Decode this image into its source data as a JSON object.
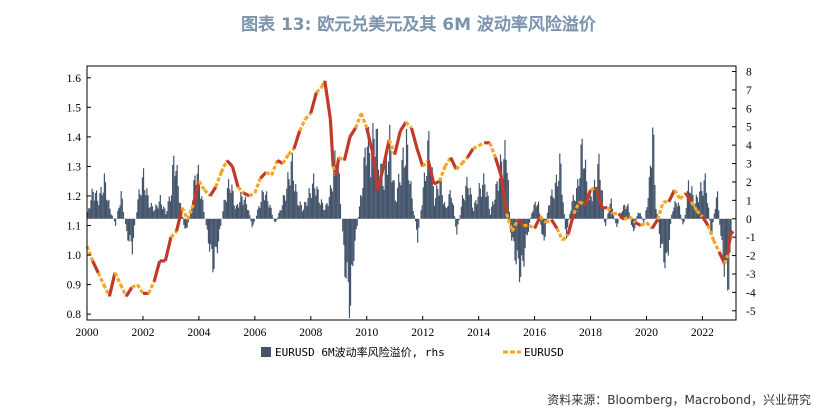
{
  "header": {
    "title": "图表 13: 欧元兑美元及其 6M 波动率风险溢价"
  },
  "footer": {
    "source": "资料来源：Bloomberg，Macrobond，兴业研究"
  },
  "chart_data": {
    "type": "bar+line",
    "x_ticks": [
      "2000",
      "2002",
      "2004",
      "2006",
      "2008",
      "2010",
      "2012",
      "2014",
      "2016",
      "2018",
      "2020",
      "2022"
    ],
    "xlim": [
      2000,
      2023.2
    ],
    "left_axis": {
      "ylim": [
        0.78,
        1.64
      ],
      "ticks": [
        "0.8",
        "0.9",
        "1.0",
        "1.1",
        "1.2",
        "1.3",
        "1.4",
        "1.5",
        "1.6"
      ]
    },
    "right_axis": {
      "ylim": [
        -5.5,
        8.3
      ],
      "ticks": [
        "-5",
        "-4",
        "-3",
        "-2",
        "-1",
        "0",
        "1",
        "2",
        "3",
        "4",
        "5",
        "6",
        "7",
        "8"
      ]
    },
    "legend": [
      {
        "label": "EURUSD 6M波动率风险溢价, rhs",
        "color": "#44546a",
        "kind": "bar"
      },
      {
        "label": "EURUSD",
        "color": "#f5a623",
        "highlight_color": "#c0392b",
        "kind": "line"
      }
    ],
    "series": [
      {
        "name": "EURUSD 6M波动率风险溢价, rhs",
        "axis": "right",
        "points": [
          [
            2000.0,
            0.3
          ],
          [
            2000.2,
            1.5
          ],
          [
            2000.4,
            1.0
          ],
          [
            2000.6,
            2.0
          ],
          [
            2000.8,
            0.5
          ],
          [
            2001.0,
            -0.3
          ],
          [
            2001.2,
            1.3
          ],
          [
            2001.4,
            -0.8
          ],
          [
            2001.6,
            -1.5
          ],
          [
            2001.8,
            1.0
          ],
          [
            2002.0,
            2.2
          ],
          [
            2002.2,
            0.8
          ],
          [
            2002.4,
            0.5
          ],
          [
            2002.6,
            1.0
          ],
          [
            2002.8,
            0.3
          ],
          [
            2003.0,
            1.5
          ],
          [
            2003.1,
            3.5
          ],
          [
            2003.3,
            1.0
          ],
          [
            2003.5,
            -0.8
          ],
          [
            2003.7,
            0.5
          ],
          [
            2003.9,
            2.8
          ],
          [
            2004.1,
            1.0
          ],
          [
            2004.3,
            -1.0
          ],
          [
            2004.5,
            -2.5
          ],
          [
            2004.7,
            -1.0
          ],
          [
            2004.9,
            1.0
          ],
          [
            2005.1,
            2.0
          ],
          [
            2005.3,
            0.5
          ],
          [
            2005.5,
            1.2
          ],
          [
            2005.7,
            0.8
          ],
          [
            2005.9,
            -0.5
          ],
          [
            2006.1,
            0.5
          ],
          [
            2006.3,
            1.5
          ],
          [
            2006.5,
            0.8
          ],
          [
            2006.7,
            -0.3
          ],
          [
            2006.9,
            0.5
          ],
          [
            2007.1,
            1.5
          ],
          [
            2007.3,
            3.0
          ],
          [
            2007.5,
            1.0
          ],
          [
            2007.7,
            0.5
          ],
          [
            2007.9,
            1.2
          ],
          [
            2008.1,
            2.0
          ],
          [
            2008.3,
            1.0
          ],
          [
            2008.5,
            0.5
          ],
          [
            2008.7,
            1.5
          ],
          [
            2008.9,
            3.5
          ],
          [
            2009.0,
            2.0
          ],
          [
            2009.1,
            -0.5
          ],
          [
            2009.2,
            -2.5
          ],
          [
            2009.3,
            -3.5
          ],
          [
            2009.4,
            -4.6
          ],
          [
            2009.5,
            -2.0
          ],
          [
            2009.6,
            -0.8
          ],
          [
            2009.8,
            1.5
          ],
          [
            2010.0,
            4.5
          ],
          [
            2010.1,
            3.0
          ],
          [
            2010.3,
            5.0
          ],
          [
            2010.4,
            3.0
          ],
          [
            2010.6,
            2.0
          ],
          [
            2010.8,
            4.0
          ],
          [
            2011.0,
            1.0
          ],
          [
            2011.2,
            2.5
          ],
          [
            2011.4,
            4.0
          ],
          [
            2011.6,
            1.0
          ],
          [
            2011.8,
            -1.0
          ],
          [
            2012.0,
            1.5
          ],
          [
            2012.2,
            4.0
          ],
          [
            2012.4,
            1.0
          ],
          [
            2012.6,
            2.0
          ],
          [
            2012.8,
            0.5
          ],
          [
            2013.0,
            1.5
          ],
          [
            2013.2,
            -0.8
          ],
          [
            2013.4,
            1.0
          ],
          [
            2013.6,
            2.0
          ],
          [
            2013.8,
            0.5
          ],
          [
            2014.0,
            1.5
          ],
          [
            2014.2,
            2.0
          ],
          [
            2014.4,
            0.3
          ],
          [
            2014.6,
            1.5
          ],
          [
            2014.8,
            3.0
          ],
          [
            2015.0,
            3.5
          ],
          [
            2015.1,
            -0.5
          ],
          [
            2015.3,
            -2.0
          ],
          [
            2015.5,
            -3.0
          ],
          [
            2015.7,
            -1.0
          ],
          [
            2015.9,
            0.5
          ],
          [
            2016.1,
            1.0
          ],
          [
            2016.3,
            -1.5
          ],
          [
            2016.5,
            1.0
          ],
          [
            2016.7,
            1.5
          ],
          [
            2016.9,
            3.0
          ],
          [
            2017.1,
            -1.0
          ],
          [
            2017.3,
            0.8
          ],
          [
            2017.5,
            1.5
          ],
          [
            2017.7,
            4.0
          ],
          [
            2017.9,
            1.0
          ],
          [
            2018.1,
            1.5
          ],
          [
            2018.3,
            3.0
          ],
          [
            2018.5,
            -0.5
          ],
          [
            2018.7,
            1.0
          ],
          [
            2018.9,
            -0.5
          ],
          [
            2019.1,
            0.5
          ],
          [
            2019.3,
            0.8
          ],
          [
            2019.5,
            -0.8
          ],
          [
            2019.7,
            0.5
          ],
          [
            2019.9,
            -0.3
          ],
          [
            2020.1,
            2.0
          ],
          [
            2020.2,
            5.2
          ],
          [
            2020.3,
            1.0
          ],
          [
            2020.5,
            -1.5
          ],
          [
            2020.7,
            -2.5
          ],
          [
            2020.9,
            0.5
          ],
          [
            2021.1,
            1.0
          ],
          [
            2021.3,
            -0.5
          ],
          [
            2021.5,
            2.0
          ],
          [
            2021.7,
            0.8
          ],
          [
            2021.9,
            1.5
          ],
          [
            2022.1,
            2.0
          ],
          [
            2022.3,
            -1.0
          ],
          [
            2022.5,
            1.5
          ],
          [
            2022.7,
            -2.0
          ],
          [
            2022.9,
            -3.5
          ],
          [
            2023.0,
            -1.5
          ]
        ]
      },
      {
        "name": "EURUSD",
        "axis": "left",
        "points": [
          [
            2000.0,
            1.03
          ],
          [
            2000.2,
            0.98
          ],
          [
            2000.4,
            0.94
          ],
          [
            2000.6,
            0.9
          ],
          [
            2000.8,
            0.86
          ],
          [
            2001.0,
            0.94
          ],
          [
            2001.2,
            0.9
          ],
          [
            2001.4,
            0.86
          ],
          [
            2001.6,
            0.89
          ],
          [
            2001.8,
            0.9
          ],
          [
            2002.0,
            0.87
          ],
          [
            2002.2,
            0.87
          ],
          [
            2002.4,
            0.91
          ],
          [
            2002.6,
            0.98
          ],
          [
            2002.8,
            0.98
          ],
          [
            2003.0,
            1.06
          ],
          [
            2003.2,
            1.08
          ],
          [
            2003.4,
            1.16
          ],
          [
            2003.6,
            1.12
          ],
          [
            2003.8,
            1.17
          ],
          [
            2004.0,
            1.25
          ],
          [
            2004.2,
            1.22
          ],
          [
            2004.4,
            1.2
          ],
          [
            2004.6,
            1.23
          ],
          [
            2004.8,
            1.28
          ],
          [
            2005.0,
            1.32
          ],
          [
            2005.2,
            1.3
          ],
          [
            2005.4,
            1.23
          ],
          [
            2005.6,
            1.21
          ],
          [
            2005.8,
            1.2
          ],
          [
            2006.0,
            1.21
          ],
          [
            2006.2,
            1.26
          ],
          [
            2006.4,
            1.28
          ],
          [
            2006.6,
            1.27
          ],
          [
            2006.8,
            1.32
          ],
          [
            2007.0,
            1.31
          ],
          [
            2007.2,
            1.34
          ],
          [
            2007.4,
            1.36
          ],
          [
            2007.6,
            1.42
          ],
          [
            2007.8,
            1.46
          ],
          [
            2008.0,
            1.48
          ],
          [
            2008.2,
            1.55
          ],
          [
            2008.4,
            1.57
          ],
          [
            2008.5,
            1.59
          ],
          [
            2008.7,
            1.46
          ],
          [
            2008.8,
            1.3
          ],
          [
            2008.9,
            1.27
          ],
          [
            2009.0,
            1.33
          ],
          [
            2009.2,
            1.32
          ],
          [
            2009.4,
            1.4
          ],
          [
            2009.6,
            1.43
          ],
          [
            2009.8,
            1.48
          ],
          [
            2010.0,
            1.43
          ],
          [
            2010.2,
            1.35
          ],
          [
            2010.4,
            1.22
          ],
          [
            2010.6,
            1.3
          ],
          [
            2010.8,
            1.39
          ],
          [
            2011.0,
            1.34
          ],
          [
            2011.2,
            1.42
          ],
          [
            2011.4,
            1.45
          ],
          [
            2011.6,
            1.43
          ],
          [
            2011.8,
            1.36
          ],
          [
            2012.0,
            1.3
          ],
          [
            2012.2,
            1.32
          ],
          [
            2012.4,
            1.24
          ],
          [
            2012.6,
            1.25
          ],
          [
            2012.8,
            1.3
          ],
          [
            2013.0,
            1.33
          ],
          [
            2013.2,
            1.29
          ],
          [
            2013.4,
            1.31
          ],
          [
            2013.6,
            1.33
          ],
          [
            2013.8,
            1.36
          ],
          [
            2014.0,
            1.37
          ],
          [
            2014.2,
            1.38
          ],
          [
            2014.4,
            1.38
          ],
          [
            2014.6,
            1.33
          ],
          [
            2014.8,
            1.27
          ],
          [
            2015.0,
            1.14
          ],
          [
            2015.2,
            1.08
          ],
          [
            2015.4,
            1.12
          ],
          [
            2015.6,
            1.1
          ],
          [
            2015.8,
            1.1
          ],
          [
            2016.0,
            1.09
          ],
          [
            2016.2,
            1.13
          ],
          [
            2016.4,
            1.11
          ],
          [
            2016.6,
            1.12
          ],
          [
            2016.8,
            1.09
          ],
          [
            2017.0,
            1.05
          ],
          [
            2017.2,
            1.07
          ],
          [
            2017.4,
            1.14
          ],
          [
            2017.6,
            1.18
          ],
          [
            2017.8,
            1.17
          ],
          [
            2018.0,
            1.22
          ],
          [
            2018.2,
            1.23
          ],
          [
            2018.4,
            1.16
          ],
          [
            2018.6,
            1.16
          ],
          [
            2018.8,
            1.14
          ],
          [
            2019.0,
            1.14
          ],
          [
            2019.2,
            1.12
          ],
          [
            2019.4,
            1.13
          ],
          [
            2019.6,
            1.11
          ],
          [
            2019.8,
            1.1
          ],
          [
            2020.0,
            1.11
          ],
          [
            2020.2,
            1.09
          ],
          [
            2020.4,
            1.12
          ],
          [
            2020.6,
            1.18
          ],
          [
            2020.8,
            1.18
          ],
          [
            2021.0,
            1.22
          ],
          [
            2021.2,
            1.19
          ],
          [
            2021.4,
            1.21
          ],
          [
            2021.6,
            1.18
          ],
          [
            2021.8,
            1.15
          ],
          [
            2022.0,
            1.13
          ],
          [
            2022.2,
            1.1
          ],
          [
            2022.4,
            1.05
          ],
          [
            2022.6,
            1.01
          ],
          [
            2022.8,
            0.97
          ],
          [
            2022.9,
            1.0
          ],
          [
            2023.0,
            1.07
          ],
          [
            2023.1,
            1.08
          ]
        ]
      }
    ]
  }
}
